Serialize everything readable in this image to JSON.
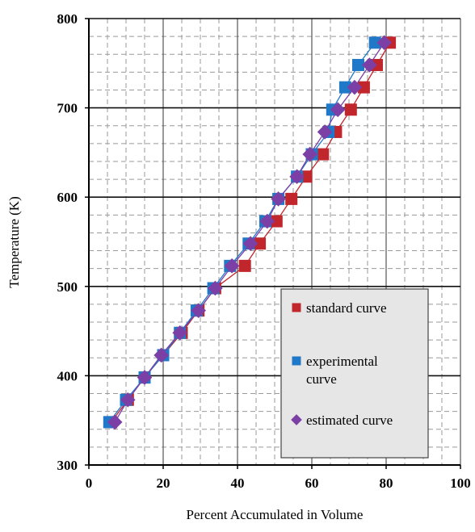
{
  "chart_data": {
    "type": "line",
    "title": "",
    "xlabel": "Percent Accumulated in Volume",
    "ylabel": "Temperature (K)",
    "xlim": [
      0,
      100
    ],
    "ylim": [
      300,
      800
    ],
    "x_ticks": [
      0,
      20,
      40,
      60,
      80,
      100
    ],
    "y_ticks": [
      300,
      400,
      500,
      600,
      700,
      800
    ],
    "x_tick_labels": [
      "0",
      "20",
      "40",
      "60",
      "80",
      "100"
    ],
    "y_tick_labels": [
      "300",
      "400",
      "500",
      "600",
      "700",
      "800"
    ],
    "grid": "major solid, minor dashed",
    "legend": {
      "placement": "lower-right",
      "entries": [
        {
          "lines": [
            "standard curve"
          ],
          "series": 0
        },
        {
          "lines": [
            "experimental",
            "curve"
          ],
          "series": 1
        },
        {
          "lines": [
            "estimated curve"
          ],
          "series": 2
        }
      ]
    },
    "series": [
      {
        "name": "standard curve",
        "marker": "square",
        "color": "#c0262c",
        "points": [
          [
            6,
            348
          ],
          [
            10.5,
            373
          ],
          [
            15,
            398
          ],
          [
            20,
            423
          ],
          [
            25,
            448
          ],
          [
            29.5,
            473
          ],
          [
            34,
            498
          ],
          [
            42,
            523
          ],
          [
            46,
            548
          ],
          [
            50.5,
            573
          ],
          [
            54.5,
            598
          ],
          [
            58.5,
            623
          ],
          [
            63,
            648
          ],
          [
            66.5,
            673
          ],
          [
            70.5,
            698
          ],
          [
            74,
            723
          ],
          [
            77.5,
            748
          ],
          [
            81,
            773
          ]
        ]
      },
      {
        "name": "experimental curve",
        "marker": "square",
        "color": "#1f78c8",
        "points": [
          [
            5.5,
            348
          ],
          [
            10,
            373
          ],
          [
            15,
            398
          ],
          [
            20,
            423
          ],
          [
            24.5,
            448
          ],
          [
            29,
            473
          ],
          [
            33.5,
            498
          ],
          [
            38,
            523
          ],
          [
            43,
            548
          ],
          [
            47.5,
            573
          ],
          [
            51,
            598
          ],
          [
            56,
            623
          ],
          [
            60,
            648
          ],
          [
            64.5,
            673
          ],
          [
            65.5,
            698
          ],
          [
            69,
            723
          ],
          [
            72.5,
            748
          ],
          [
            77,
            773
          ]
        ]
      },
      {
        "name": "estimated curve",
        "marker": "diamond",
        "color": "#7b3fa6",
        "points": [
          [
            7,
            348
          ],
          [
            10.5,
            373
          ],
          [
            15,
            398
          ],
          [
            19.5,
            423
          ],
          [
            24.5,
            448
          ],
          [
            29.5,
            473
          ],
          [
            34,
            498
          ],
          [
            38.5,
            523
          ],
          [
            43.5,
            548
          ],
          [
            48,
            573
          ],
          [
            51,
            598
          ],
          [
            56,
            623
          ],
          [
            59.5,
            648
          ],
          [
            63.5,
            673
          ],
          [
            67,
            698
          ],
          [
            71.5,
            723
          ],
          [
            75.5,
            748
          ],
          [
            79.5,
            773
          ]
        ]
      }
    ]
  }
}
